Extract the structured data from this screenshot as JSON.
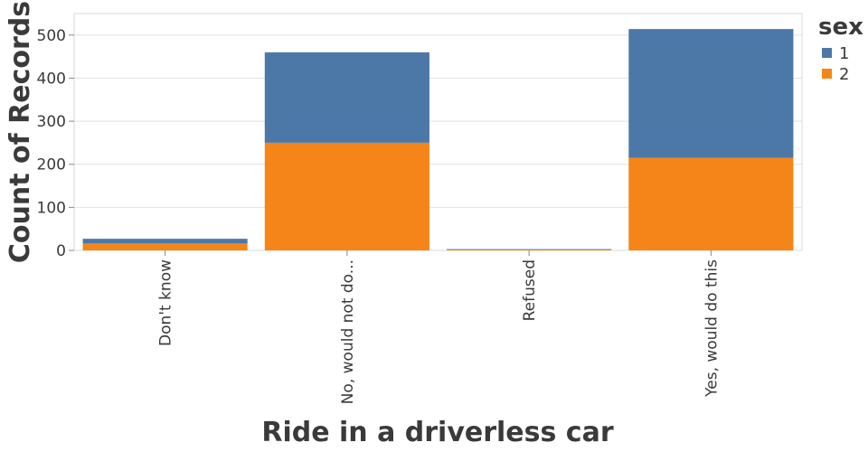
{
  "chart_data": {
    "type": "bar",
    "stacked": true,
    "categories": [
      "Don't know",
      "No, would not do...",
      "Refused",
      "Yes, would do this"
    ],
    "series": [
      {
        "name": "1",
        "values": [
          11,
          210,
          1,
          299
        ],
        "color": "#4c78a8"
      },
      {
        "name": "2",
        "values": [
          16,
          250,
          2,
          215
        ],
        "color": "#f58518"
      }
    ],
    "xlabel": "Ride in a driverless car",
    "ylabel": "Count of Records",
    "ylim": [
      0,
      550
    ],
    "yticks": [
      0,
      100,
      200,
      300,
      400,
      500
    ],
    "grid": true,
    "legend": {
      "title": "sex",
      "placement": "top-right"
    }
  }
}
